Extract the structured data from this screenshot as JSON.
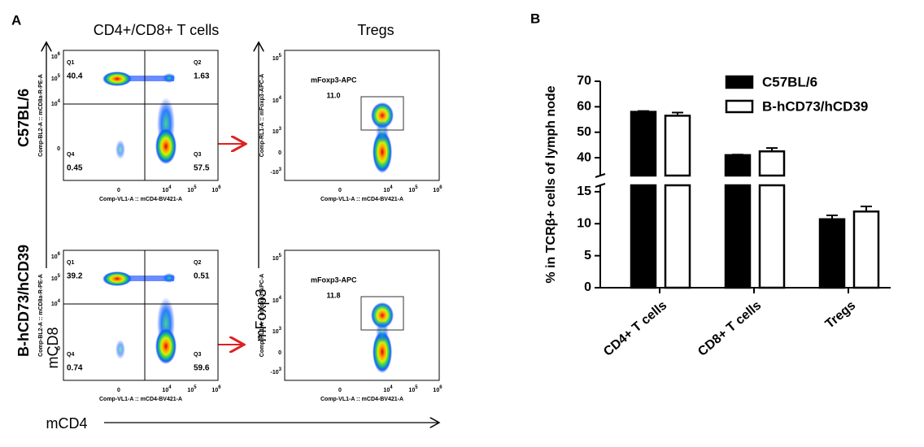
{
  "panel_a": {
    "label": "A",
    "column_titles": [
      "CD4+/CD8+ T cells",
      "Tregs"
    ],
    "row_labels": [
      "C57BL/6",
      "B-hCD73/hCD39"
    ],
    "axis_titles": {
      "y_left": "mCD8",
      "x": "mCD4",
      "y_mid": "mFoxp3"
    },
    "quadrant_yticks": [
      {
        "base": "10",
        "exp": "6"
      },
      {
        "base": "10",
        "exp": "5"
      },
      {
        "base": "10",
        "exp": "4"
      },
      "0"
    ],
    "gate_yticks": [
      {
        "base": "10",
        "exp": "5"
      },
      {
        "base": "10",
        "exp": "4"
      },
      {
        "base": "10",
        "exp": "3"
      },
      "0",
      {
        "base": "-10",
        "exp": "3"
      }
    ],
    "xticks": [
      "0",
      {
        "base": "10",
        "exp": "4"
      },
      {
        "base": "10",
        "exp": "5"
      },
      {
        "base": "10",
        "exp": "6"
      }
    ],
    "plots": [
      {
        "kind": "quadrant",
        "y_label": "Comp-BL2-A :: mCD8a-R-PE-A",
        "x_label": "Comp-VL1-A :: mCD4-BV421-A",
        "quadrants": [
          {
            "name": "Q1",
            "value": "40.4"
          },
          {
            "name": "Q2",
            "value": "1.63"
          },
          {
            "name": "Q4",
            "value": "0.45"
          },
          {
            "name": "Q3",
            "value": "57.5"
          }
        ]
      },
      {
        "kind": "gate",
        "y_label": "Comp-RL1-A :: mFoxp3-APC-A",
        "x_label": "Comp-VL1-A :: mCD4-BV421-A",
        "gate_name": "mFoxp3-APC",
        "gate_value": "11.0"
      },
      {
        "kind": "quadrant",
        "y_label": "Comp-BL2-A :: mCD8a-R-PE-A",
        "x_label": "Comp-VL1-A :: mCD4-BV421-A",
        "quadrants": [
          {
            "name": "Q1",
            "value": "39.2"
          },
          {
            "name": "Q2",
            "value": "0.51"
          },
          {
            "name": "Q4",
            "value": "0.74"
          },
          {
            "name": "Q3",
            "value": "59.6"
          }
        ]
      },
      {
        "kind": "gate",
        "y_label": "Comp-RL1-A :: mFoxp3-APC-A",
        "x_label": "Comp-VL1-A :: mCD4-BV421-A",
        "gate_name": "mFoxp3-APC",
        "gate_value": "11.8"
      }
    ]
  },
  "chart_data": {
    "type": "bar",
    "panel_label": "B",
    "y_label": "% in TCRβ+ cells of lymph node",
    "categories": [
      "CD4+ T cells",
      "CD8+ T cells",
      "Tregs"
    ],
    "series": [
      {
        "name": "C57BL/6",
        "color": "#000000",
        "values": [
          58,
          41,
          10.7
        ],
        "errors": [
          0.3,
          0.2,
          0.6
        ]
      },
      {
        "name": "B-hCD73/hCD39",
        "color": "#ffffff",
        "values": [
          56.5,
          42.5,
          11.9
        ],
        "errors": [
          1.2,
          1.3,
          0.8
        ]
      }
    ],
    "ylim": [
      0,
      70
    ],
    "ybreak": [
      16,
      33
    ],
    "yticks": [
      0,
      5,
      10,
      15,
      40,
      50,
      60,
      70
    ],
    "legend": "upper right"
  }
}
